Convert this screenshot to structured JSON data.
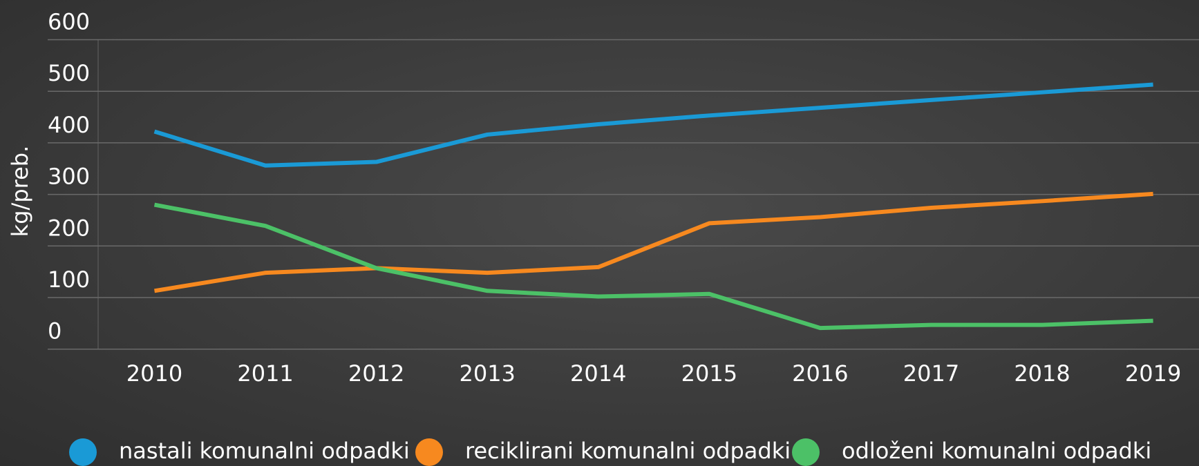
{
  "chart_data": {
    "type": "line",
    "y_label": "kg/preb.",
    "categories": [
      "2010",
      "2011",
      "2012",
      "2013",
      "2014",
      "2015",
      "2016",
      "2017",
      "2018",
      "2019"
    ],
    "series": [
      {
        "name": "nastali komunalni odpadki",
        "color": "#1a9ad6",
        "values": [
          422,
          356,
          363,
          416,
          436,
          453,
          468,
          483,
          498,
          513
        ]
      },
      {
        "name": "reciklirani komunalni odpadki",
        "color": "#f7891f",
        "values": [
          113,
          148,
          157,
          148,
          159,
          244,
          256,
          274,
          287,
          301
        ]
      },
      {
        "name": "odloženi komunalni odpadki",
        "color": "#4cc167",
        "values": [
          280,
          239,
          157,
          113,
          102,
          107,
          41,
          47,
          47,
          55
        ]
      }
    ],
    "ylim": [
      0,
      600
    ],
    "yticks": [
      0,
      100,
      200,
      300,
      400,
      500,
      600
    ],
    "grid": true
  }
}
